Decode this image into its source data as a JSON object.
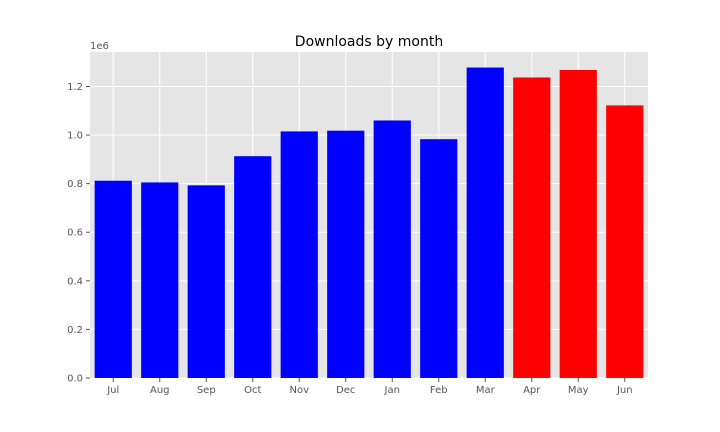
{
  "chart_data": {
    "type": "bar",
    "title": "Downloads by month",
    "xlabel": "",
    "ylabel": "",
    "offset_text": "1e6",
    "categories": [
      "Jul",
      "Aug",
      "Sep",
      "Oct",
      "Nov",
      "Dec",
      "Jan",
      "Feb",
      "Mar",
      "Apr",
      "May",
      "Jun"
    ],
    "values": [
      812000,
      805000,
      793000,
      913000,
      1015000,
      1018000,
      1060000,
      983000,
      1278000,
      1237000,
      1268000,
      1122000
    ],
    "bar_colors": [
      "#0000ff",
      "#0000ff",
      "#0000ff",
      "#0000ff",
      "#0000ff",
      "#0000ff",
      "#0000ff",
      "#0000ff",
      "#0000ff",
      "#ff0000",
      "#ff0000",
      "#ff0000"
    ],
    "ylim": [
      0,
      1341900
    ],
    "yticks": [
      0,
      200000,
      400000,
      600000,
      800000,
      1000000,
      1200000
    ],
    "ytick_labels": [
      "0.0",
      "0.2",
      "0.4",
      "0.6",
      "0.8",
      "1.0",
      "1.2"
    ],
    "grid": true,
    "style": {
      "axes_facecolor": "#e5e5e5",
      "grid_color": "#ffffff",
      "tick_color": "#555555"
    }
  }
}
